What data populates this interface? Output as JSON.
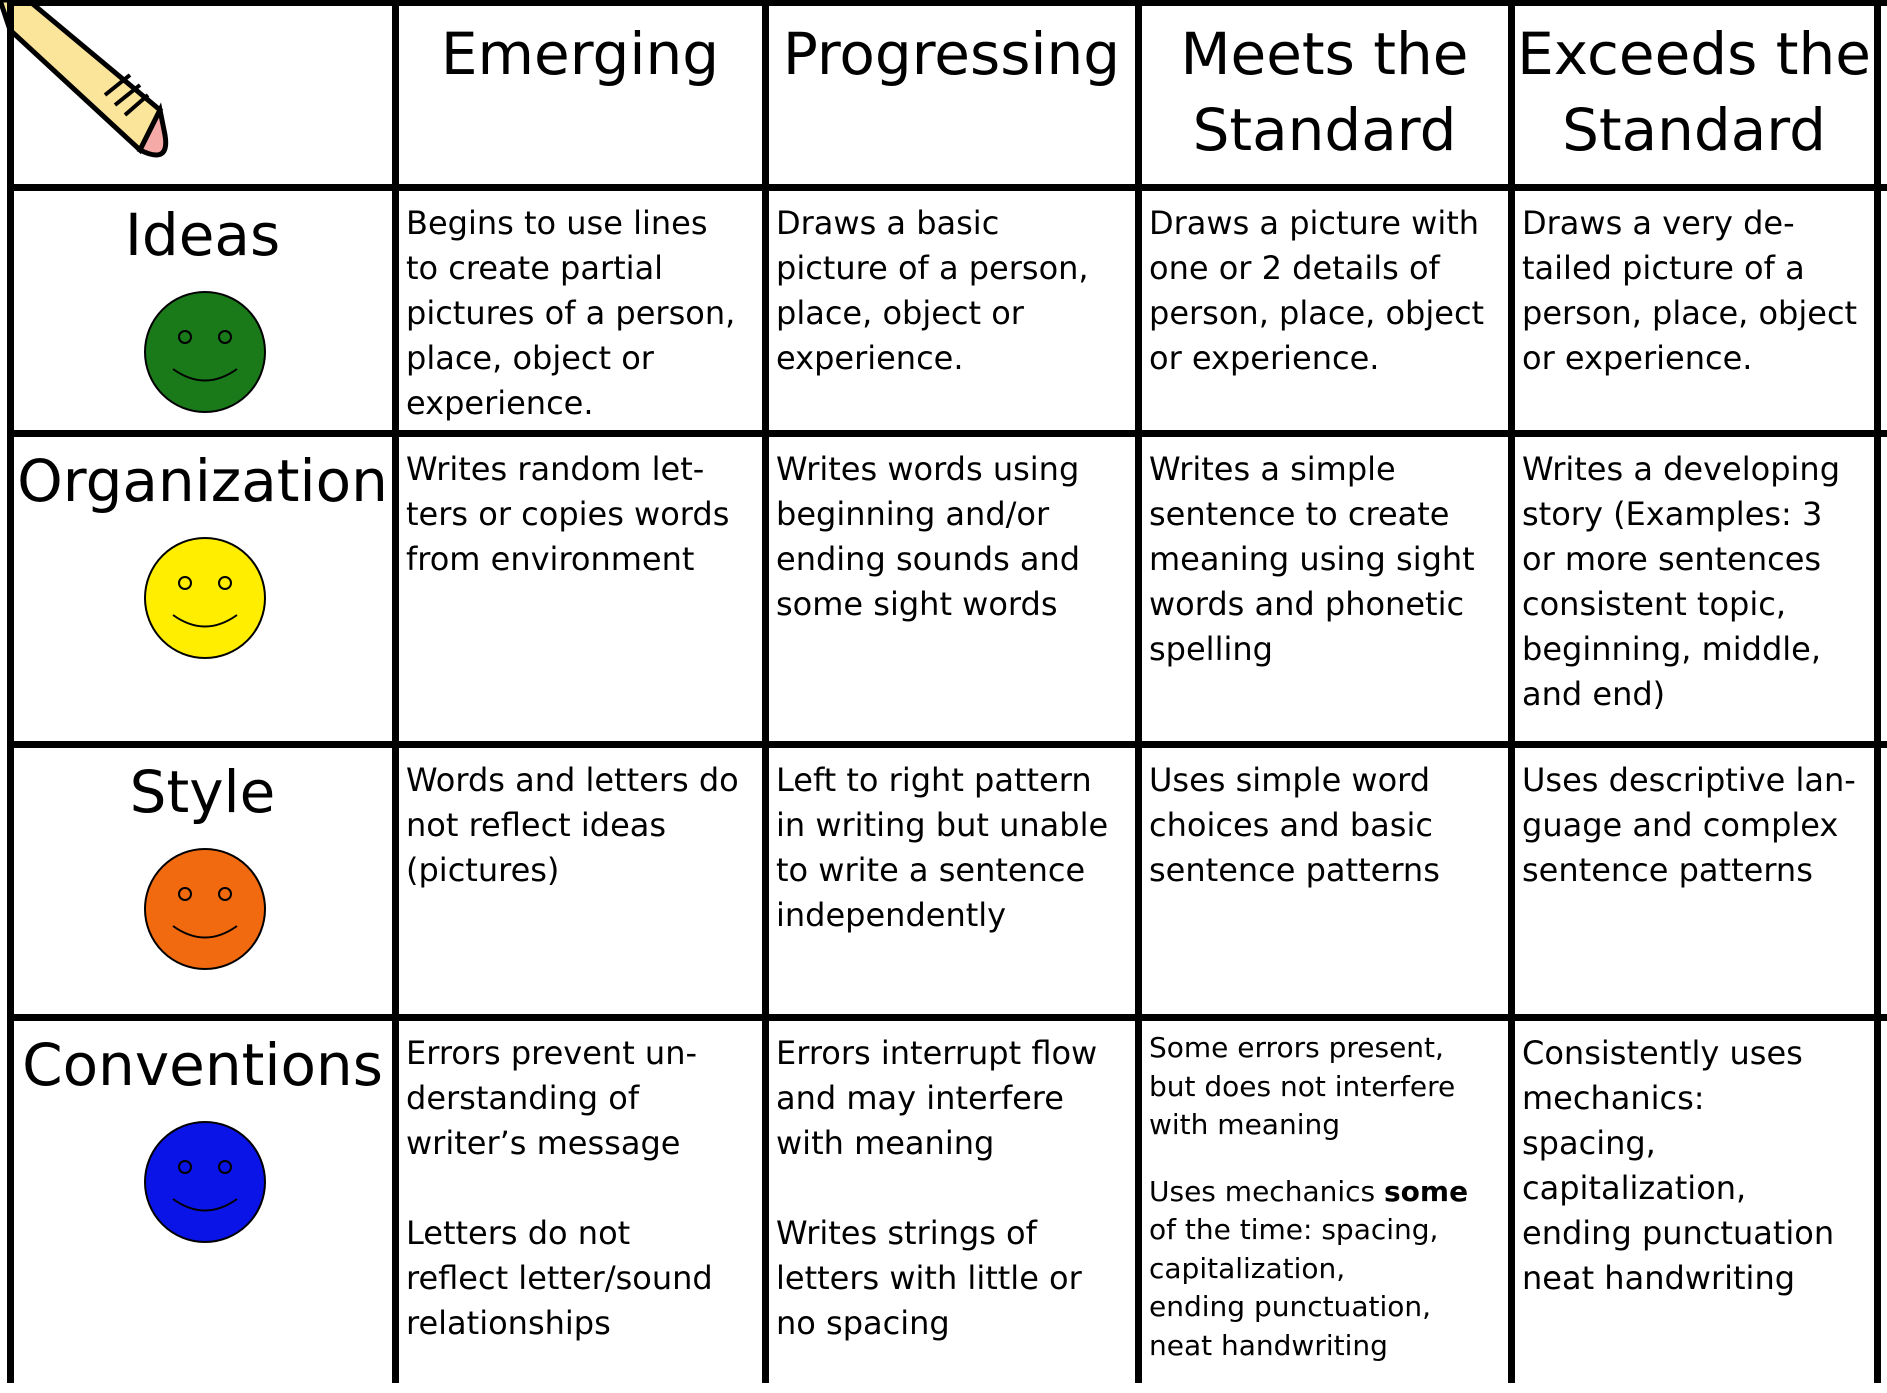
{
  "table": {
    "header": [
      "Emerging",
      "Progressing",
      "Meets the\nStandard",
      "Exceeds the\nStandard"
    ],
    "rows": [
      {
        "label": "Ideas",
        "color": "#1a7a1a",
        "cells": [
          [
            "Begins to use lines\nto create partial\npictures of a person,\nplace, object or\nexperience."
          ],
          [
            "Draws a basic\npicture of a person,\nplace, object or\nexperience."
          ],
          [
            "Draws a picture with\none or 2 details of\nperson, place, object\nor experience."
          ],
          [
            "Draws a very de-\ntailed picture of a\nperson, place, object\nor experience."
          ]
        ]
      },
      {
        "label": "Organization",
        "color": "#ffee00",
        "cells": [
          [
            "Writes random let-\nters or copies words\nfrom environment"
          ],
          [
            "Writes words using\nbeginning and/or\nending sounds and\nsome sight words"
          ],
          [
            "Writes a simple\nsentence to create\nmeaning using sight\nwords and phonetic\nspelling"
          ],
          [
            "Writes a developing\nstory (Examples: 3\nor more sentences\nconsistent topic,\nbeginning, middle,\nand end)"
          ]
        ]
      },
      {
        "label": "Style",
        "color": "#f26a10",
        "cells": [
          [
            "Words and letters do\nnot reflect ideas\n(pictures)"
          ],
          [
            "Left to right pattern\nin writing but unable\nto write a sentence\nindependently"
          ],
          [
            "Uses simple word\nchoices and basic\nsentence patterns"
          ],
          [
            "Uses descriptive lan-\nguage and  complex\nsentence patterns"
          ]
        ]
      },
      {
        "label": "Conventions",
        "color": "#0a14e6",
        "cells": [
          [
            "Errors prevent un-\nderstanding of\nwriter’s message",
            "Letters do not\nreflect letter/sound\nrelationships"
          ],
          [
            "Errors interrupt flow\nand may interfere\nwith meaning",
            "Writes strings of\nletters with little or\nno spacing"
          ],
          [
            "Some errors present,\nbut does not interfere\nwith meaning",
            "Uses mechanics ",
            "some",
            "\nof the time: spacing,\ncapitalization,\nending punctuation,\nneat handwriting"
          ],
          [
            "Consistently uses\nmechanics:\nspacing,\ncapitalization,\nending punctuation\nneat handwriting"
          ]
        ]
      }
    ]
  }
}
